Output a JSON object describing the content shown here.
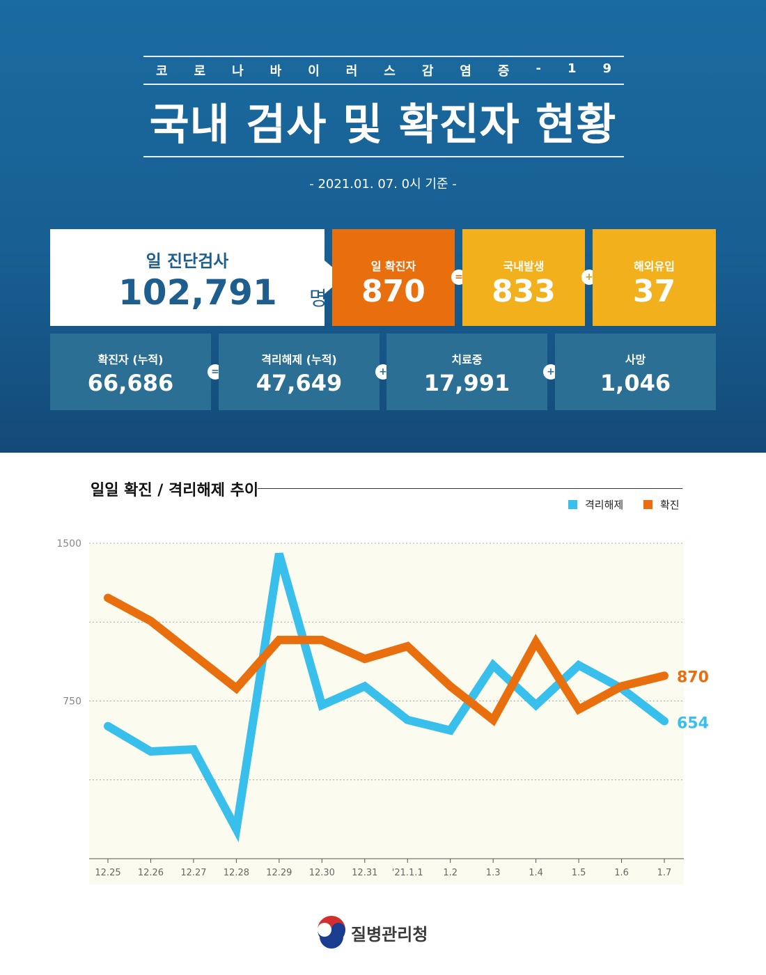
{
  "header": {
    "subtitle_letters": [
      "코",
      "로",
      "나",
      "바",
      "이",
      "러",
      "스",
      "감",
      "염",
      "증",
      "-",
      "1",
      "9"
    ],
    "title": "국내 검사 및 확진자 현황",
    "date_note": "- 2021.01. 07. 0시 기준 -"
  },
  "stats": {
    "tests": {
      "label": "일 진단검사",
      "value": "102,791",
      "unit": "명"
    },
    "daily_confirmed": {
      "label": "일 확진자",
      "value": "870"
    },
    "domestic": {
      "label": "국내발생",
      "value": "833"
    },
    "overseas": {
      "label": "해외유입",
      "value": "37"
    },
    "cumulative_confirmed": {
      "label": "확진자 (누적)",
      "value": "66,686"
    },
    "cumulative_released": {
      "label": "격리해제 (누적)",
      "value": "47,649"
    },
    "in_treatment": {
      "label": "치료중",
      "value": "17,991"
    },
    "deaths": {
      "label": "사망",
      "value": "1,046"
    },
    "ops": {
      "eq": "=",
      "plus": "+"
    }
  },
  "chart_title": "일일 확진 / 격리해제 추이",
  "legend": {
    "released": "격리해제",
    "confirmed": "확진"
  },
  "chart_data": {
    "type": "line",
    "categories": [
      "12.25",
      "12.26",
      "12.27",
      "12.28",
      "12.29",
      "12.30",
      "12.31",
      "'21.1.1",
      "1.2",
      "1.3",
      "1.4",
      "1.5",
      "1.6",
      "1.7"
    ],
    "series": [
      {
        "name": "격리해제",
        "color": "#38bfeb",
        "values": [
          630,
          510,
          520,
          140,
          1450,
          730,
          820,
          660,
          610,
          920,
          730,
          920,
          810,
          654
        ]
      },
      {
        "name": "확진",
        "color": "#e96f0e",
        "values": [
          1240,
          1130,
          970,
          810,
          1040,
          1040,
          950,
          1010,
          820,
          660,
          1030,
          710,
          820,
          870
        ]
      }
    ],
    "y_ticks": [
      "1500",
      "750"
    ],
    "ylim": [
      0,
      1500
    ],
    "end_labels": [
      "870",
      "654"
    ],
    "grid": true,
    "plot_background": "#fbfbef"
  },
  "footer": {
    "org_name": "질병관리청"
  }
}
